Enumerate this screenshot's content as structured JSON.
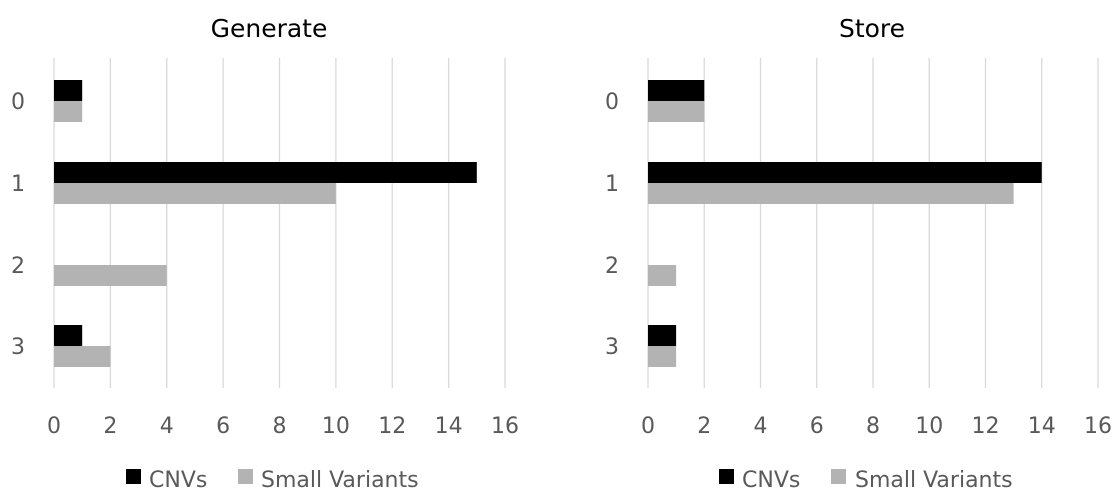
{
  "chart_data": [
    {
      "type": "bar",
      "orientation": "horizontal",
      "title": "Generate",
      "categories": [
        "0",
        "1",
        "2",
        "3"
      ],
      "series": [
        {
          "name": "CNVs",
          "color": "#000000",
          "values": [
            1,
            15,
            0,
            1
          ]
        },
        {
          "name": "Small Variants",
          "color": "#b3b3b3",
          "values": [
            1,
            10,
            4,
            2
          ]
        }
      ],
      "xlim": [
        0,
        16
      ],
      "xticks": [
        "0",
        "2",
        "4",
        "6",
        "8",
        "10",
        "12",
        "14",
        "16"
      ],
      "grid": true,
      "legend_position": "bottom"
    },
    {
      "type": "bar",
      "orientation": "horizontal",
      "title": "Store",
      "categories": [
        "0",
        "1",
        "2",
        "3"
      ],
      "series": [
        {
          "name": "CNVs",
          "color": "#000000",
          "values": [
            2,
            14,
            0,
            1
          ]
        },
        {
          "name": "Small Variants",
          "color": "#b3b3b3",
          "values": [
            2,
            13,
            1,
            1
          ]
        }
      ],
      "xlim": [
        0,
        16
      ],
      "xticks": [
        "0",
        "2",
        "4",
        "6",
        "8",
        "10",
        "12",
        "14",
        "16"
      ],
      "grid": true,
      "legend_position": "bottom"
    }
  ]
}
